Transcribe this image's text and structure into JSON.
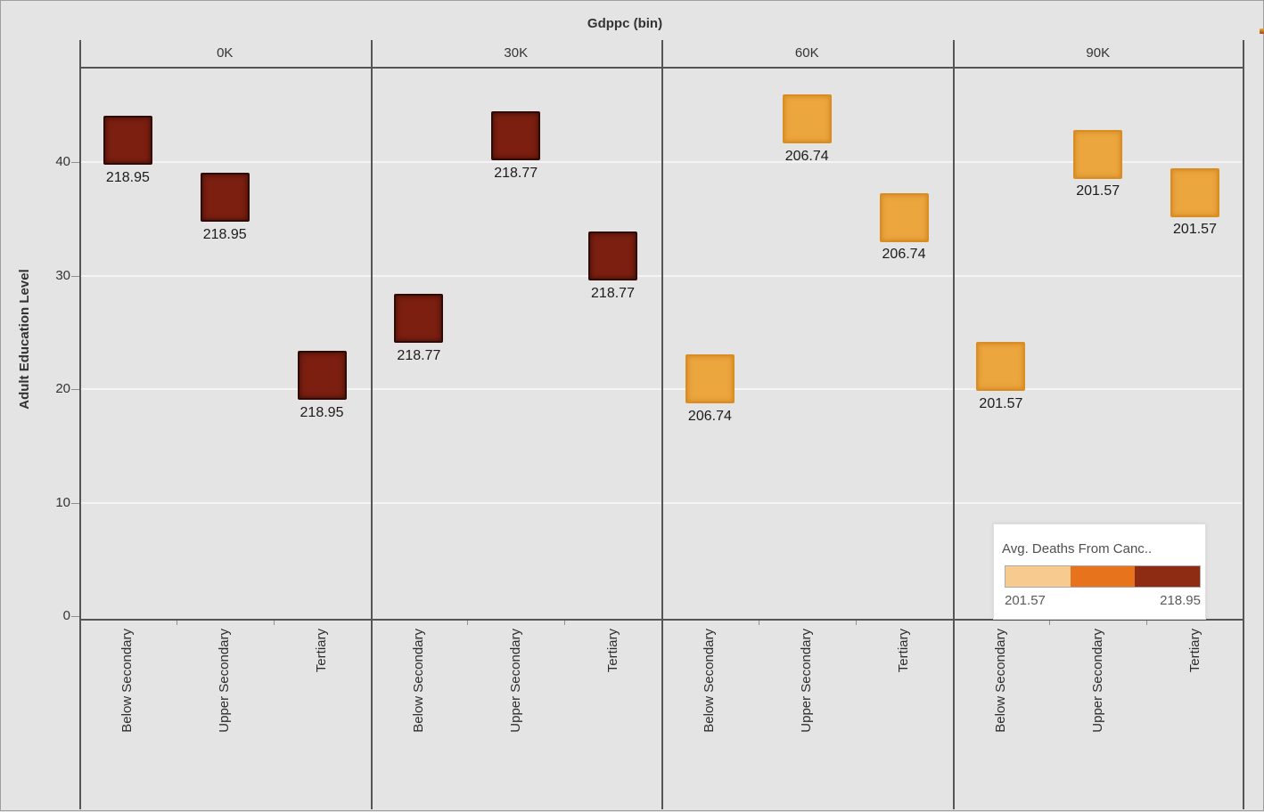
{
  "title": "Gdppc (bin)",
  "y_axis": {
    "label": "Adult Education Level",
    "ticks": [
      "0",
      "10",
      "20",
      "30",
      "40"
    ]
  },
  "x_categories": [
    "Below Secondary",
    "Upper Secondary",
    "Tertiary"
  ],
  "chart_data": {
    "type": "scatter",
    "mark_shape": "square",
    "facet_field": "Gdppc (bin)",
    "y_field": "Adult Education Level",
    "color_field": "Avg. Deaths From Cancer",
    "ylim": [
      0,
      48
    ],
    "grid": true,
    "facets": [
      {
        "bin": "0K",
        "avg_deaths_label": "218.95",
        "mark_color": "#7c1f10",
        "mark_border": "#2f0b05",
        "mark_class": "dark",
        "points": [
          {
            "category": "Below Secondary",
            "y": 41.9
          },
          {
            "category": "Upper Secondary",
            "y": 36.9
          },
          {
            "category": "Tertiary",
            "y": 21.2
          }
        ]
      },
      {
        "bin": "30K",
        "avg_deaths_label": "218.77",
        "mark_color": "#7c1f10",
        "mark_border": "#2f0b05",
        "mark_class": "dark",
        "points": [
          {
            "category": "Below Secondary",
            "y": 26.2
          },
          {
            "category": "Upper Secondary",
            "y": 42.3
          },
          {
            "category": "Tertiary",
            "y": 31.7
          }
        ]
      },
      {
        "bin": "60K",
        "avg_deaths_label": "206.74",
        "mark_color": "#eca63e",
        "mark_border": "#da8e22",
        "mark_class": "orange",
        "points": [
          {
            "category": "Below Secondary",
            "y": 20.9
          },
          {
            "category": "Upper Secondary",
            "y": 43.8
          },
          {
            "category": "Tertiary",
            "y": 35.1
          }
        ]
      },
      {
        "bin": "90K",
        "avg_deaths_label": "201.57",
        "mark_color": "#eca63e",
        "mark_border": "#da8e22",
        "mark_class": "orange",
        "points": [
          {
            "category": "Below Secondary",
            "y": 22.0
          },
          {
            "category": "Upper Secondary",
            "y": 40.7
          },
          {
            "category": "Tertiary",
            "y": 37.3
          }
        ]
      }
    ],
    "legend": {
      "title": "Avg. Deaths From Canc..",
      "min_label": "201.57",
      "max_label": "218.95",
      "gradient_colors": [
        "#f7cb90",
        "#e8731d",
        "#8d2c12"
      ]
    }
  }
}
